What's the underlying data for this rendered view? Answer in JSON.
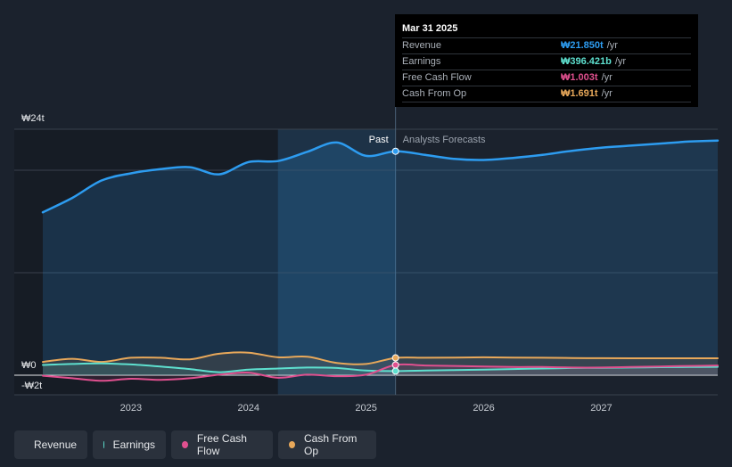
{
  "tooltip": {
    "date": "Mar 31 2025",
    "rows": [
      {
        "label": "Revenue",
        "value": "₩21.850t",
        "unit": "/yr",
        "color": "#2d9cf0"
      },
      {
        "label": "Earnings",
        "value": "₩396.421b",
        "unit": "/yr",
        "color": "#5ee0cf"
      },
      {
        "label": "Free Cash Flow",
        "value": "₩1.003t",
        "unit": "/yr",
        "color": "#e0508f"
      },
      {
        "label": "Cash From Op",
        "value": "₩1.691t",
        "unit": "/yr",
        "color": "#e8a85a"
      }
    ]
  },
  "legend": [
    {
      "label": "Revenue",
      "color": "#2d9cf0"
    },
    {
      "label": "Earnings",
      "color": "#5ee0cf"
    },
    {
      "label": "Free Cash Flow",
      "color": "#e0508f"
    },
    {
      "label": "Cash From Op",
      "color": "#e8a85a"
    }
  ],
  "chart_data": {
    "type": "line",
    "y_unit": "KRW trillion",
    "ylim": [
      -2,
      24
    ],
    "y_tick_labels": [
      {
        "value": 24,
        "label": "₩24t"
      },
      {
        "value": 0,
        "label": "₩0"
      },
      {
        "value": -2,
        "label": "-₩2t"
      }
    ],
    "x_tick_labels": [
      {
        "value": 2023.0,
        "label": "2023"
      },
      {
        "value": 2024.0,
        "label": "2024"
      },
      {
        "value": 2025.0,
        "label": "2025"
      },
      {
        "value": 2026.0,
        "label": "2026"
      },
      {
        "value": 2027.0,
        "label": "2027"
      }
    ],
    "xlim": [
      2022.25,
      2027.99
    ],
    "past_label": "Past",
    "forecast_label": "Analysts Forecasts",
    "past_end": 2025.25,
    "past_shade_start": 2024.25,
    "colors": {
      "revenue": "#2d9cf0",
      "earnings": "#5ee0cf",
      "free_cash_flow": "#e0508f",
      "cash_from_op": "#e8a85a"
    },
    "series": [
      {
        "name": "Revenue",
        "key": "revenue",
        "x": [
          2022.25,
          2022.5,
          2022.75,
          2023.0,
          2023.25,
          2023.5,
          2023.75,
          2024.0,
          2024.25,
          2024.5,
          2024.75,
          2025.0,
          2025.25,
          2025.5,
          2025.75,
          2026.0,
          2026.25,
          2026.5,
          2026.75,
          2027.0,
          2027.25,
          2027.5,
          2027.75,
          2027.99
        ],
        "y": [
          15.9,
          17.3,
          19.0,
          19.7,
          20.1,
          20.3,
          19.6,
          20.8,
          20.9,
          21.8,
          22.7,
          21.4,
          21.85,
          21.5,
          21.1,
          21.0,
          21.2,
          21.5,
          21.9,
          22.2,
          22.4,
          22.6,
          22.8,
          22.9
        ]
      },
      {
        "name": "Earnings",
        "key": "earnings",
        "x": [
          2022.25,
          2022.5,
          2022.75,
          2023.0,
          2023.25,
          2023.5,
          2023.75,
          2024.0,
          2024.25,
          2024.5,
          2024.75,
          2025.0,
          2025.25,
          2025.5,
          2025.75,
          2026.0,
          2026.25,
          2026.5,
          2026.75,
          2027.0,
          2027.25,
          2027.5,
          2027.75,
          2027.99
        ],
        "y": [
          1.0,
          1.1,
          1.15,
          1.05,
          0.85,
          0.6,
          0.3,
          0.55,
          0.65,
          0.75,
          0.7,
          0.45,
          0.4,
          0.45,
          0.5,
          0.55,
          0.6,
          0.65,
          0.7,
          0.72,
          0.75,
          0.78,
          0.8,
          0.82
        ]
      },
      {
        "name": "Free Cash Flow",
        "key": "free_cash_flow",
        "x": [
          2022.25,
          2022.5,
          2022.75,
          2023.0,
          2023.25,
          2023.5,
          2023.75,
          2024.0,
          2024.25,
          2024.5,
          2024.75,
          2025.0,
          2025.25,
          2025.5,
          2025.75,
          2026.0,
          2026.25,
          2026.5,
          2026.75,
          2027.0,
          2027.25,
          2027.5,
          2027.75,
          2027.99
        ],
        "y": [
          -0.05,
          -0.3,
          -0.55,
          -0.35,
          -0.45,
          -0.3,
          0.05,
          0.25,
          -0.25,
          0.05,
          -0.1,
          0.05,
          1.0,
          0.95,
          0.9,
          0.85,
          0.8,
          0.8,
          0.75,
          0.75,
          0.8,
          0.85,
          0.9,
          0.95
        ]
      },
      {
        "name": "Cash From Op",
        "key": "cash_from_op",
        "x": [
          2022.25,
          2022.5,
          2022.75,
          2023.0,
          2023.25,
          2023.5,
          2023.75,
          2024.0,
          2024.25,
          2024.5,
          2024.75,
          2025.0,
          2025.25,
          2025.5,
          2025.75,
          2026.0,
          2026.25,
          2026.5,
          2026.75,
          2027.0,
          2027.25,
          2027.5,
          2027.75,
          2027.99
        ],
        "y": [
          1.3,
          1.6,
          1.3,
          1.7,
          1.7,
          1.55,
          2.1,
          2.2,
          1.75,
          1.8,
          1.2,
          1.1,
          1.691,
          1.7,
          1.72,
          1.75,
          1.72,
          1.7,
          1.68,
          1.66,
          1.65,
          1.65,
          1.65,
          1.65
        ]
      }
    ]
  }
}
